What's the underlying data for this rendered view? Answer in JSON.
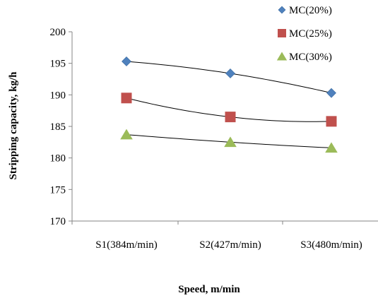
{
  "chart_data": {
    "type": "scatter",
    "categories": [
      "S1(384m/min)",
      "S2(427m/min)",
      "S3(480m/min)"
    ],
    "series": [
      {
        "name": "MC(20%)",
        "values": [
          195.3,
          193.4,
          190.3
        ],
        "color": "#4F81BD",
        "marker": "diamond"
      },
      {
        "name": "MC(25%)",
        "values": [
          189.5,
          186.5,
          185.8
        ],
        "color": "#C0504D",
        "marker": "square"
      },
      {
        "name": "MC(30%)",
        "values": [
          183.7,
          182.5,
          181.6
        ],
        "color": "#9BBB59",
        "marker": "triangle"
      }
    ],
    "trendline": "polynomial",
    "xlabel": "Speed, m/min",
    "ylabel": "Stripping capacity, kg/h",
    "ylim": [
      170,
      200
    ],
    "yticks": [
      170,
      175,
      180,
      185,
      190,
      195,
      200
    ],
    "grid": false,
    "legend_position": "top-right"
  }
}
